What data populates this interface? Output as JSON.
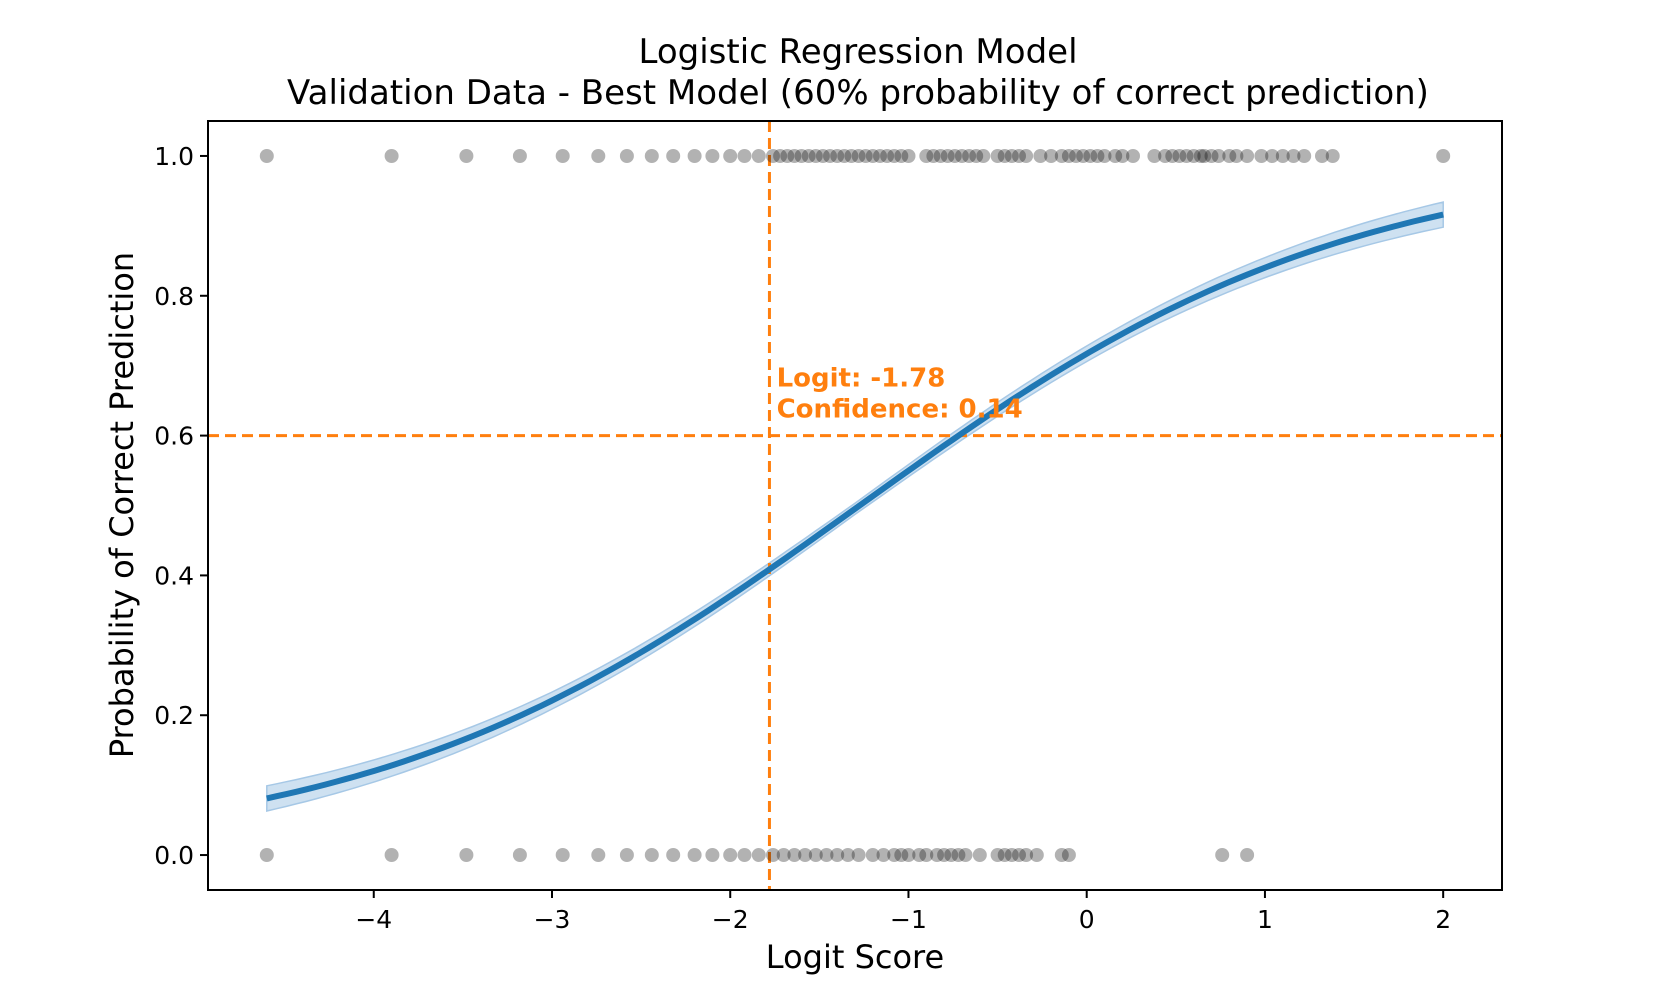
{
  "chart_data": {
    "type": "scatter",
    "title_line1": "Logistic Regression Model",
    "title_line2": "Validation Data - Best Model (60% probability of correct prediction)",
    "xlabel": "Logit Score",
    "ylabel": "Probability of Correct Prediction",
    "xlim": [
      -4.93,
      2.33
    ],
    "ylim": [
      -0.05,
      1.05
    ],
    "xticks": [
      -4,
      -3,
      -2,
      -1,
      0,
      1,
      2
    ],
    "xtick_labels": [
      "−4",
      "−3",
      "−2",
      "−1",
      "0",
      "1",
      "2"
    ],
    "yticks": [
      0.0,
      0.2,
      0.4,
      0.6,
      0.8,
      1.0
    ],
    "ytick_labels": [
      "0.0",
      "0.2",
      "0.4",
      "0.6",
      "0.8",
      "1.0"
    ],
    "grid": false,
    "series": [
      {
        "name": "observations_correct",
        "y": 1,
        "x": [
          -4.6,
          -3.9,
          -3.48,
          -3.18,
          -2.94,
          -2.74,
          -2.58,
          -2.44,
          -2.32,
          -2.2,
          -2.1,
          -2.0,
          -1.92,
          -1.84,
          -1.76,
          -1.72,
          -1.68,
          -1.64,
          -1.6,
          -1.56,
          -1.52,
          -1.48,
          -1.44,
          -1.4,
          -1.36,
          -1.32,
          -1.28,
          -1.24,
          -1.2,
          -1.16,
          -1.12,
          -1.08,
          -1.04,
          -1.0,
          -0.9,
          -0.86,
          -0.82,
          -0.78,
          -0.74,
          -0.7,
          -0.66,
          -0.62,
          -0.58,
          -0.5,
          -0.46,
          -0.42,
          -0.38,
          -0.34,
          -0.26,
          -0.2,
          -0.14,
          -0.1,
          -0.06,
          -0.02,
          0.02,
          0.06,
          0.1,
          0.16,
          0.2,
          0.26,
          0.38,
          0.44,
          0.48,
          0.52,
          0.56,
          0.6,
          0.64,
          0.66,
          0.7,
          0.74,
          0.8,
          0.84,
          0.9,
          0.98,
          1.04,
          1.1,
          1.16,
          1.22,
          1.32,
          1.38,
          2.0
        ],
        "color": "#000000"
      },
      {
        "name": "observations_incorrect",
        "y": 0,
        "x": [
          -4.6,
          -3.9,
          -3.48,
          -3.18,
          -2.94,
          -2.74,
          -2.58,
          -2.44,
          -2.32,
          -2.2,
          -2.1,
          -2.0,
          -1.92,
          -1.84,
          -1.76,
          -1.7,
          -1.64,
          -1.58,
          -1.52,
          -1.46,
          -1.4,
          -1.34,
          -1.28,
          -1.2,
          -1.14,
          -1.08,
          -1.04,
          -1.0,
          -0.94,
          -0.9,
          -0.84,
          -0.8,
          -0.76,
          -0.72,
          -0.68,
          -0.6,
          -0.5,
          -0.46,
          -0.42,
          -0.38,
          -0.34,
          -0.28,
          -0.14,
          -0.1,
          0.76,
          0.9
        ],
        "color": "#000000"
      },
      {
        "name": "logistic_fit",
        "type": "line",
        "color": "#1f77b4",
        "intercept": 0.93,
        "slope": 0.73,
        "x_range": [
          -4.6,
          2.0
        ],
        "band_color": "#a6c8e6",
        "band_halfwidth": [
          0.018,
          0.012,
          0.008,
          0.012,
          0.018
        ]
      }
    ],
    "reference_lines": {
      "x": -1.78,
      "y": 0.6,
      "color": "#ff7f0e",
      "style": "dashed"
    },
    "annotation": {
      "line1": "Logit: -1.78",
      "line2": "Confidence: 0.14",
      "color": "#ff7f0e",
      "anchor_x": -1.74,
      "anchor_y": 0.6
    }
  }
}
